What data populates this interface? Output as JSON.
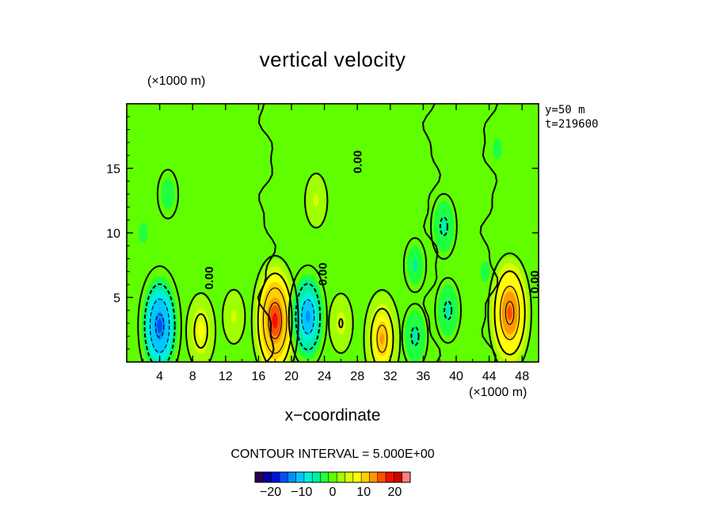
{
  "chart_data": {
    "type": "heatmap",
    "title": "vertical velocity",
    "xlabel": "x−coordinate",
    "x_unit": "(×1000 m)",
    "y_unit": "(×1000 m)",
    "xlim": [
      0,
      50
    ],
    "ylim": [
      0,
      20
    ],
    "x_ticks": [
      4,
      8,
      12,
      16,
      20,
      24,
      28,
      32,
      36,
      40,
      44,
      48
    ],
    "y_ticks": [
      5,
      10,
      15
    ],
    "info": [
      "y=50 m",
      "t=219600"
    ],
    "contour_interval_label": "CONTOUR INTERVAL = 5.000E+00",
    "contour_interval": 5,
    "zero_contour_label": "0.00",
    "colorbar": {
      "range": [
        -25,
        25
      ],
      "ticks": [
        -20,
        -10,
        0,
        10,
        20
      ],
      "colors": [
        "#2a0050",
        "#0000a0",
        "#0010d8",
        "#0050ff",
        "#0090ff",
        "#00c8ff",
        "#00f0e0",
        "#00f0a0",
        "#20ff40",
        "#60ff00",
        "#a0ff00",
        "#d8ff00",
        "#ffff00",
        "#ffd000",
        "#ff9800",
        "#ff5000",
        "#f01000",
        "#d00000",
        "#ff8080"
      ]
    },
    "features": [
      {
        "x": 4.0,
        "y": 2.8,
        "w": -16
      },
      {
        "x": 9.0,
        "y": 2.4,
        "w": 8
      },
      {
        "x": 13.0,
        "y": 3.5,
        "w": 4
      },
      {
        "x": 18.0,
        "y": 3.2,
        "w": 18
      },
      {
        "x": 22.0,
        "y": 3.5,
        "w": -13
      },
      {
        "x": 26.0,
        "y": 3.0,
        "w": 5
      },
      {
        "x": 31.0,
        "y": 1.8,
        "w": 12
      },
      {
        "x": 35.0,
        "y": 2.0,
        "w": -6
      },
      {
        "x": 39.0,
        "y": 4.0,
        "w": -6
      },
      {
        "x": 38.5,
        "y": 10.5,
        "w": -6
      },
      {
        "x": 35.0,
        "y": 7.5,
        "w": -4
      },
      {
        "x": 46.5,
        "y": 3.8,
        "w": 16
      },
      {
        "x": 23.0,
        "y": 12.5,
        "w": 4
      },
      {
        "x": 5.0,
        "y": 13.0,
        "w": -3
      },
      {
        "x": 2.0,
        "y": 10.0,
        "w": -2
      },
      {
        "x": 43.5,
        "y": 7.0,
        "w": -2
      },
      {
        "x": 45.0,
        "y": 16.5,
        "w": -2
      },
      {
        "x": 10.0,
        "y": 16.5,
        "w": -1
      },
      {
        "x": 30.0,
        "y": 17.0,
        "w": 1
      }
    ]
  }
}
